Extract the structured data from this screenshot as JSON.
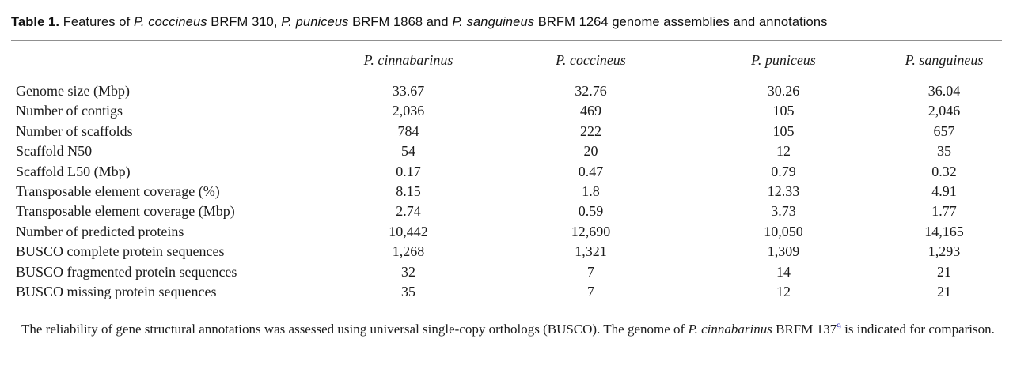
{
  "page": {
    "background_color": "#ffffff",
    "text_color": "#1b1b1b",
    "rule_color": "#909090",
    "reference_link_color": "#3a3ac4"
  },
  "caption": {
    "segments": [
      {
        "text": "Table 1.",
        "bold": true
      },
      {
        "text": " Features of "
      },
      {
        "text": "P. coccineus",
        "italic": true
      },
      {
        "text": " BRFM 310, "
      },
      {
        "text": "P. puniceus",
        "italic": true
      },
      {
        "text": " BRFM 1868 and "
      },
      {
        "text": "P. sanguineus",
        "italic": true
      },
      {
        "text": " BRFM 1264 genome assemblies and annotations"
      }
    ]
  },
  "table": {
    "stub_header": "",
    "column_headers": [
      "P. cinnabarinus",
      "P. coccineus",
      "P. puniceus",
      "P. sanguineus"
    ],
    "rows": [
      {
        "label": "Genome size (Mbp)",
        "values": [
          "33.67",
          "32.76",
          "30.26",
          "36.04"
        ]
      },
      {
        "label": "Number of contigs",
        "values": [
          "2,036",
          "469",
          "105",
          "2,046"
        ]
      },
      {
        "label": "Number of scaffolds",
        "values": [
          "784",
          "222",
          "105",
          "657"
        ]
      },
      {
        "label": "Scaffold N50",
        "values": [
          "54",
          "20",
          "12",
          "35"
        ]
      },
      {
        "label": "Scaffold L50 (Mbp)",
        "values": [
          "0.17",
          "0.47",
          "0.79",
          "0.32"
        ]
      },
      {
        "label": "Transposable element coverage (%)",
        "values": [
          "8.15",
          "1.8",
          "12.33",
          "4.91"
        ]
      },
      {
        "label": "Transposable element coverage (Mbp)",
        "values": [
          "2.74",
          "0.59",
          "3.73",
          "1.77"
        ]
      },
      {
        "label": "Number of predicted proteins",
        "values": [
          "10,442",
          "12,690",
          "10,050",
          "14,165"
        ]
      },
      {
        "label": "BUSCO complete protein sequences",
        "values": [
          "1,268",
          "1,321",
          "1,309",
          "1,293"
        ]
      },
      {
        "label": "BUSCO fragmented protein sequences",
        "values": [
          "32",
          "7",
          "14",
          "21"
        ]
      },
      {
        "label": "BUSCO missing protein sequences",
        "values": [
          "35",
          "7",
          "12",
          "21"
        ]
      }
    ]
  },
  "footnote": {
    "segments": [
      {
        "text": "The reliability of gene structural annotations was assessed using universal single-copy orthologs (BUSCO). The genome of "
      },
      {
        "text": "P. cinnabarinus",
        "italic": true
      },
      {
        "text": " BRFM 137"
      },
      {
        "text": "9",
        "superscript": true,
        "link": true
      },
      {
        "text": " is indicated for comparison."
      }
    ]
  }
}
